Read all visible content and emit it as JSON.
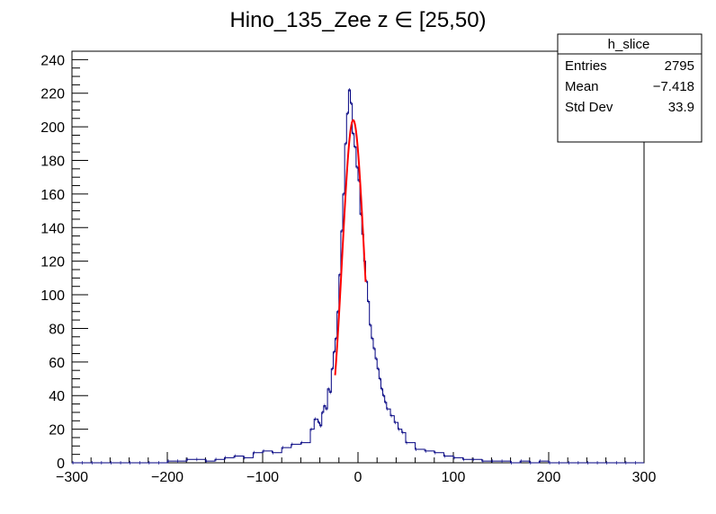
{
  "chart_data": {
    "type": "histogram",
    "title": "Hino_135_Zee z  ∈ [25,50)",
    "xlabel": "",
    "ylabel": "",
    "xlim": [
      -300,
      300
    ],
    "ylim": [
      0,
      245
    ],
    "x_ticks": [
      -300,
      -200,
      -100,
      0,
      100,
      200,
      300
    ],
    "x_tick_labels": [
      "−300",
      "−200",
      "−100",
      "0",
      "100",
      "200",
      "300"
    ],
    "y_ticks": [
      0,
      20,
      40,
      60,
      80,
      100,
      120,
      140,
      160,
      180,
      200,
      220,
      240
    ],
    "grid": false,
    "line_color": "#000080",
    "fit_color": "#ff0000",
    "stats_box": {
      "name": "h_slice",
      "rows": [
        {
          "label": "Entries",
          "value": "2795"
        },
        {
          "label": "Mean",
          "value": "−7.418"
        },
        {
          "label": "Std Dev",
          "value": "33.9"
        }
      ]
    },
    "histogram": {
      "bin_width": 2,
      "x": [
        -300,
        -290,
        -280,
        -270,
        -260,
        -250,
        -240,
        -230,
        -220,
        -210,
        -200,
        -190,
        -180,
        -170,
        -160,
        -150,
        -140,
        -130,
        -120,
        -110,
        -100,
        -90,
        -80,
        -70,
        -60,
        -50,
        -46,
        -42,
        -40,
        -38,
        -36,
        -34,
        -32,
        -30,
        -28,
        -26,
        -24,
        -22,
        -20,
        -18,
        -16,
        -14,
        -12,
        -10,
        -8,
        -6,
        -4,
        -2,
        0,
        2,
        4,
        6,
        8,
        10,
        12,
        14,
        16,
        18,
        20,
        22,
        24,
        26,
        28,
        30,
        34,
        38,
        42,
        46,
        50,
        60,
        70,
        80,
        90,
        100,
        110,
        120,
        130,
        140,
        150,
        160,
        170,
        180,
        190,
        200,
        210,
        220,
        230,
        240,
        250,
        260,
        270,
        280,
        290
      ],
      "counts": [
        0,
        0,
        0,
        0,
        0,
        0,
        0,
        0,
        0,
        0,
        1,
        1,
        2,
        2,
        1,
        2,
        3,
        4,
        3,
        6,
        7,
        6,
        9,
        11,
        12,
        20,
        26,
        24,
        22,
        30,
        34,
        32,
        44,
        42,
        56,
        66,
        74,
        90,
        112,
        138,
        160,
        190,
        208,
        222,
        214,
        196,
        188,
        176,
        168,
        148,
        136,
        120,
        108,
        96,
        82,
        74,
        68,
        62,
        56,
        50,
        44,
        40,
        36,
        32,
        28,
        24,
        20,
        18,
        12,
        8,
        7,
        6,
        4,
        3,
        2,
        2,
        1,
        1,
        1,
        0,
        1,
        0,
        1,
        0,
        0,
        0,
        0,
        0,
        0,
        0,
        0,
        0,
        0
      ]
    },
    "fit": {
      "type": "gaussian",
      "x_range": [
        -24,
        8
      ],
      "amplitude": 204,
      "mean": -5,
      "sigma": 11.5
    }
  }
}
